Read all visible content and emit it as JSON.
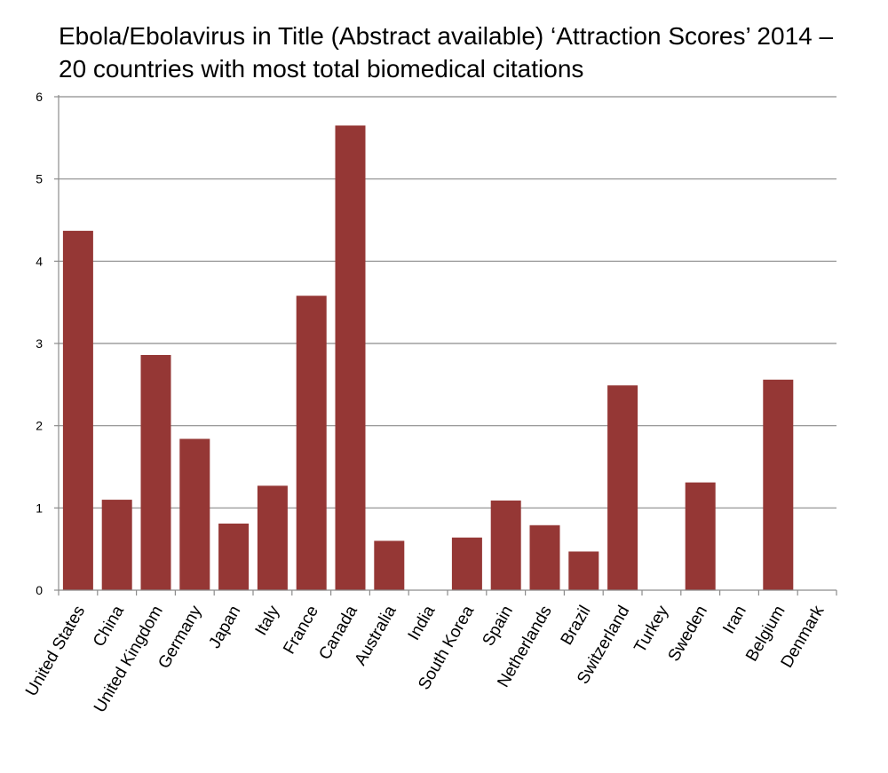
{
  "chart_data": {
    "type": "bar",
    "title_line1": "Ebola/Ebolavirus in Title (Abstract available) ‘Attraction Scores’ 2014 –",
    "title_line2": "20 countries with most total biomedical citations",
    "xlabel": "",
    "ylabel": "",
    "ylim": [
      0,
      6
    ],
    "yticks": [
      0,
      1,
      2,
      3,
      4,
      5,
      6
    ],
    "grid": true,
    "legend": "none",
    "bar_color": "#953735",
    "categories": [
      "United States",
      "China",
      "United Kingdom",
      "Germany",
      "Japan",
      "Italy",
      "France",
      "Canada",
      "Australia",
      "India",
      "South Korea",
      "Spain",
      "Netherlands",
      "Brazil",
      "Switzerland",
      "Turkey",
      "Sweden",
      "Iran",
      "Belgium",
      "Denmark"
    ],
    "values": [
      4.37,
      1.1,
      2.86,
      1.84,
      0.81,
      1.27,
      3.58,
      5.65,
      0.6,
      0,
      0.64,
      1.09,
      0.79,
      0.47,
      2.49,
      0,
      1.31,
      0,
      2.56,
      0
    ]
  }
}
